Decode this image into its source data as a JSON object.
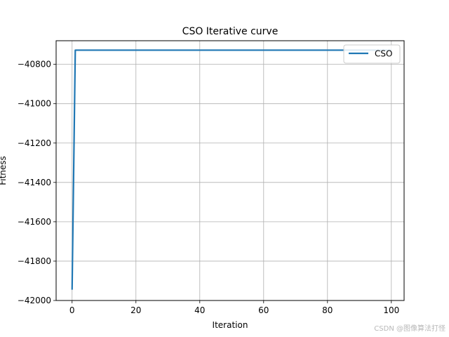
{
  "chart_data": {
    "type": "line",
    "title": "CSO Iterative curve",
    "xlabel": "Iteration",
    "ylabel": "Fitness",
    "xlim": [
      -5,
      104
    ],
    "ylim": [
      -42000,
      -40680
    ],
    "xticks": [
      0,
      20,
      40,
      60,
      80,
      100
    ],
    "yticks": [
      -42000,
      -41800,
      -41600,
      -41400,
      -41200,
      -41000,
      -40800
    ],
    "xtick_labels": [
      "0",
      "20",
      "40",
      "60",
      "80",
      "100"
    ],
    "ytick_labels": [
      "−42000",
      "−41800",
      "−41600",
      "−41400",
      "−41200",
      "−41000",
      "−40800"
    ],
    "grid": true,
    "legend_position": "top-right",
    "series": [
      {
        "name": "CSO",
        "color": "#1f77b4",
        "x": [
          0,
          1,
          100
        ],
        "y": [
          -41945,
          -40728,
          -40728
        ]
      }
    ]
  },
  "watermark": "CSDN @图像算法打怪"
}
